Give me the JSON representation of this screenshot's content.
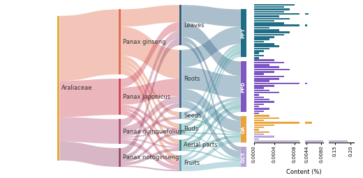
{
  "chart_data": [
    {
      "type": "sankey",
      "nodes": [
        {
          "name": "Araliaceae",
          "color": "#E8A93C"
        },
        {
          "name": "Panax ginseng",
          "color": "#E0704F"
        },
        {
          "name": "Panax japonicus",
          "color": "#D1495B"
        },
        {
          "name": "Panax quinquefolium",
          "color": "#B5577A"
        },
        {
          "name": "Panax notoginseng",
          "color": "#9B4D6E"
        },
        {
          "name": "Leaves",
          "color": "#2E5E7E"
        },
        {
          "name": "Roots",
          "color": "#3A6F8F"
        },
        {
          "name": "Seeds",
          "color": "#4F8FA8"
        },
        {
          "name": "Buds",
          "color": "#3E9C9C"
        },
        {
          "name": "Aerial parts",
          "color": "#2A8C8C"
        },
        {
          "name": "Fruits",
          "color": "#5FA8B8"
        },
        {
          "name": "PPT",
          "color": "#1F6E85"
        },
        {
          "name": "PPD",
          "color": "#7E57C2"
        },
        {
          "name": "OA",
          "color": "#E8A33C"
        },
        {
          "name": "OCT",
          "color": "#B9A3D6"
        }
      ],
      "links": [
        {
          "source": "Araliaceae",
          "target": "Panax ginseng",
          "value": 45
        },
        {
          "source": "Araliaceae",
          "target": "Panax japonicus",
          "value": 25
        },
        {
          "source": "Araliaceae",
          "target": "Panax quinquefolium",
          "value": 17
        },
        {
          "source": "Araliaceae",
          "target": "Panax notoginseng",
          "value": 13
        },
        {
          "source": "Panax ginseng",
          "target": "Leaves",
          "value": 12
        },
        {
          "source": "Panax ginseng",
          "target": "Roots",
          "value": 20
        },
        {
          "source": "Panax ginseng",
          "target": "Seeds",
          "value": 3
        },
        {
          "source": "Panax ginseng",
          "target": "Buds",
          "value": 3
        },
        {
          "source": "Panax ginseng",
          "target": "Aerial parts",
          "value": 3
        },
        {
          "source": "Panax ginseng",
          "target": "Fruits",
          "value": 4
        },
        {
          "source": "Panax japonicus",
          "target": "Leaves",
          "value": 6
        },
        {
          "source": "Panax japonicus",
          "target": "Roots",
          "value": 12
        },
        {
          "source": "Panax japonicus",
          "target": "Buds",
          "value": 2
        },
        {
          "source": "Panax japonicus",
          "target": "Aerial parts",
          "value": 2
        },
        {
          "source": "Panax japonicus",
          "target": "Fruits",
          "value": 3
        },
        {
          "source": "Panax quinquefolium",
          "target": "Leaves",
          "value": 5
        },
        {
          "source": "Panax quinquefolium",
          "target": "Roots",
          "value": 5
        },
        {
          "source": "Panax quinquefolium",
          "target": "Seeds",
          "value": 2
        },
        {
          "source": "Panax quinquefolium",
          "target": "Buds",
          "value": 1
        },
        {
          "source": "Panax quinquefolium",
          "target": "Aerial parts",
          "value": 1
        },
        {
          "source": "Panax quinquefolium",
          "target": "Fruits",
          "value": 3
        },
        {
          "source": "Panax notoginseng",
          "target": "Leaves",
          "value": 5
        },
        {
          "source": "Panax notoginseng",
          "target": "Roots",
          "value": 3
        },
        {
          "source": "Panax notoginseng",
          "target": "Buds",
          "value": 2
        },
        {
          "source": "Panax notoginseng",
          "target": "Aerial parts",
          "value": 2
        },
        {
          "source": "Panax notoginseng",
          "target": "Fruits",
          "value": 1
        },
        {
          "source": "Leaves",
          "target": "PPT",
          "value": 12
        },
        {
          "source": "Leaves",
          "target": "PPD",
          "value": 10
        },
        {
          "source": "Leaves",
          "target": "OA",
          "value": 3
        },
        {
          "source": "Leaves",
          "target": "OCT",
          "value": 3
        },
        {
          "source": "Roots",
          "target": "PPT",
          "value": 12
        },
        {
          "source": "Roots",
          "target": "PPD",
          "value": 15
        },
        {
          "source": "Roots",
          "target": "OA",
          "value": 8
        },
        {
          "source": "Roots",
          "target": "OCT",
          "value": 5
        },
        {
          "source": "Seeds",
          "target": "PPT",
          "value": 2
        },
        {
          "source": "Seeds",
          "target": "PPD",
          "value": 2
        },
        {
          "source": "Seeds",
          "target": "OA",
          "value": 1
        },
        {
          "source": "Buds",
          "target": "PPT",
          "value": 3
        },
        {
          "source": "Buds",
          "target": "PPD",
          "value": 3
        },
        {
          "source": "Buds",
          "target": "OA",
          "value": 1
        },
        {
          "source": "Buds",
          "target": "OCT",
          "value": 1
        },
        {
          "source": "Aerial parts",
          "target": "PPT",
          "value": 2
        },
        {
          "source": "Aerial parts",
          "target": "PPD",
          "value": 3
        },
        {
          "source": "Aerial parts",
          "target": "OA",
          "value": 2
        },
        {
          "source": "Aerial parts",
          "target": "OCT",
          "value": 1
        },
        {
          "source": "Fruits",
          "target": "PPT",
          "value": 2
        },
        {
          "source": "Fruits",
          "target": "PPD",
          "value": 2
        },
        {
          "source": "Fruits",
          "target": "OA",
          "value": 3
        },
        {
          "source": "Fruits",
          "target": "OCT",
          "value": 4
        }
      ]
    },
    {
      "type": "bar",
      "orientation": "horizontal",
      "tick_labels": "x",
      "xlabel": "Content (%)",
      "segments": [
        {
          "xlim": [
            0,
            0.0009
          ],
          "xticks": [
            {
              "value": 0,
              "label": "0.0000"
            },
            {
              "value": 0.0004,
              "label": "0.0004"
            },
            {
              "value": 0.0008,
              "label": "0.0008"
            }
          ]
        },
        {
          "xlim": [
            0.004,
            0.0084
          ],
          "xticks": [
            {
              "value": 0.0044,
              "label": "0.0044"
            },
            {
              "value": 0.008,
              "label": "0.0080"
            }
          ]
        },
        {
          "xlim": [
            0.13,
            0.21
          ],
          "xticks": [
            0.15,
            {
              "value": 0.2,
              "label": "0.20"
            }
          ]
        }
      ],
      "series": [
        {
          "name": "PPT",
          "values": [
            0.0008,
            0.0006,
            0.0007,
            0.0006,
            0.0048,
            0.0005,
            0.0007,
            0.0004,
            0.0006,
            0.0046,
            0.0003,
            0.0005,
            0.0007,
            0.0006,
            0.0004,
            0.0003,
            0.0002,
            0.0004,
            0.0005,
            0.0003,
            0.0002,
            0.0001,
            0.0002,
            0.0001
          ]
        },
        {
          "name": "PPD",
          "values": [
            0.0004,
            0.0006,
            0.0003,
            0.0005,
            0.0007,
            0.0004,
            0.0002,
            0.0006,
            0.0005,
            0.0003,
            0.0045,
            0.0004,
            0.0002,
            0.0003,
            0.0005,
            0.0001,
            0.0002,
            0.0003,
            0.0004,
            0.0002,
            0.0001,
            0.0003,
            0.0002,
            0.0001
          ]
        },
        {
          "name": "OA",
          "values": [
            0.0003,
            0.0005,
            0.0002,
            0.0058,
            0.0004,
            0.0002,
            0.0001,
            0.0003
          ]
        },
        {
          "name": "OCT",
          "values": [
            0.0002,
            0.0004,
            0.0001,
            0.19
          ]
        }
      ]
    }
  ]
}
